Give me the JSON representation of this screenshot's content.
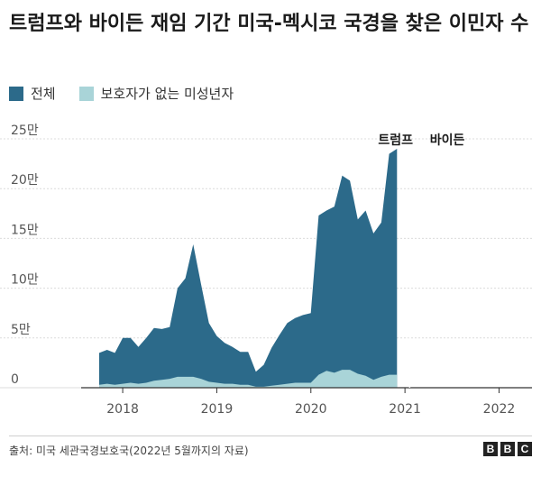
{
  "title": "트럼프와 바이든 재임 기간 미국-멕시코 국경을 찾은 이민자 수",
  "legend": [
    {
      "label": "전체",
      "color": "#2c6a8a"
    },
    {
      "label": "보호자가 없는 미성년자",
      "color": "#a9d4d8"
    }
  ],
  "source": "출처: 미국 세관국경보호국(2022년 5월까지의 자료)",
  "brand": [
    "B",
    "B",
    "C"
  ],
  "chart_data": {
    "type": "area",
    "title": "트럼프와 바이든 재임 기간 미국-멕시코 국경을 찾은 이민자 수",
    "xlabel": "",
    "ylabel": "",
    "x_start": 2017.75,
    "x_step": 0.0833,
    "xlim": [
      2017.75,
      2022.35
    ],
    "ylim": [
      0,
      25
    ],
    "y_ticks": [
      0,
      5,
      10,
      15,
      20,
      25
    ],
    "y_tick_labels": [
      "0",
      "5만",
      "10만",
      "15만",
      "20만",
      "25만"
    ],
    "x_ticks": [
      2018,
      2019,
      2020,
      2021,
      2022
    ],
    "x_tick_labels": [
      "2018",
      "2019",
      "2020",
      "2021",
      "2022"
    ],
    "grid": true,
    "legend_position": "top-left",
    "series": [
      {
        "name": "전체",
        "color": "#2c6a8a",
        "values": [
          3.5,
          3.8,
          3.5,
          5.0,
          5.0,
          4.1,
          5.0,
          6.0,
          5.9,
          6.1,
          10.0,
          11.0,
          14.4,
          10.4,
          6.5,
          5.2,
          4.5,
          4.1,
          3.6,
          3.6,
          1.6,
          2.3,
          4.0,
          5.3,
          6.5,
          7.0,
          7.3,
          7.5,
          17.3,
          17.8,
          18.2,
          21.3,
          20.8,
          16.9,
          17.8,
          15.5,
          16.6,
          23.5,
          24.0
        ]
      },
      {
        "name": "보호자가 없는 미성년자",
        "color": "#a9d4d8",
        "values": [
          0.3,
          0.4,
          0.3,
          0.4,
          0.5,
          0.4,
          0.5,
          0.7,
          0.8,
          0.9,
          1.1,
          1.1,
          1.1,
          0.9,
          0.6,
          0.5,
          0.4,
          0.4,
          0.3,
          0.3,
          0.1,
          0.1,
          0.2,
          0.3,
          0.4,
          0.5,
          0.5,
          0.5,
          1.3,
          1.7,
          1.5,
          1.8,
          1.8,
          1.4,
          1.2,
          0.8,
          1.1,
          1.3,
          1.3
        ]
      }
    ],
    "annotations": [
      {
        "label": "트럼프",
        "x": 2020.9
      },
      {
        "label": "바이든",
        "x": 2021.45
      }
    ],
    "divider_x": 2021.05
  }
}
